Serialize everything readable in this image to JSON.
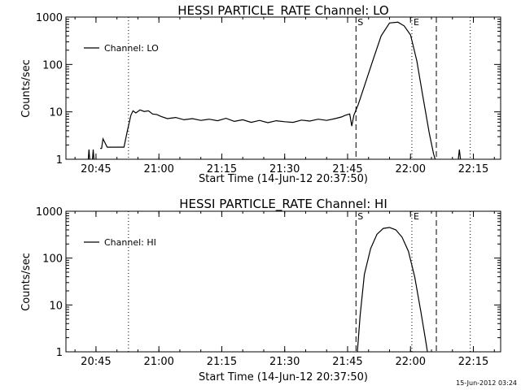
{
  "footer": {
    "timestamp": "15-Jun-2012 03:24"
  },
  "chart_data": [
    {
      "type": "line",
      "title": "HESSI PARTICLE_RATE Channel: LO",
      "xlabel": "Start Time (14-Jun-12 20:37:50)",
      "ylabel": "Counts/sec",
      "y_scale": "log",
      "xlim": [
        "20:37:50",
        "22:21:30"
      ],
      "ylim": [
        1,
        1000
      ],
      "x_ticks": [
        "20:45",
        "21:00",
        "21:15",
        "21:30",
        "21:45",
        "22:00",
        "22:15"
      ],
      "y_ticks": [
        "1",
        "10",
        "100",
        "1000"
      ],
      "grid": false,
      "legend": {
        "position": "top-left",
        "entries": [
          "Channel: LO"
        ]
      },
      "markers": [
        {
          "time": "20:52:45",
          "style": "dotted",
          "label": ""
        },
        {
          "time": "21:47:00",
          "style": "dashed",
          "label": "S"
        },
        {
          "time": "22:00:20",
          "style": "dotted",
          "label": "E"
        },
        {
          "time": "22:06:10",
          "style": "dashed",
          "label": ""
        },
        {
          "time": "22:14:15",
          "style": "dotted",
          "label": ""
        }
      ],
      "series": [
        {
          "name": "Channel: LO",
          "segments": [
            {
              "x": [
                "20:43:00",
                "20:43:20",
                "20:43:40",
                "20:44:00",
                "20:44:20",
                "20:44:40"
              ],
              "y": [
                0.65,
                1.6,
                0.65,
                0.65,
                1.6,
                0.65
              ]
            },
            {
              "x": [
                "20:46:00",
                "20:46:20",
                "20:46:40",
                "20:47:40",
                "20:48:10",
                "20:48:40",
                "20:49:20",
                "20:50:30",
                "20:51:40",
                "20:52:30",
                "20:53:20",
                "20:53:50",
                "20:54:30",
                "20:55:30",
                "20:56:30",
                "20:57:30",
                "20:58:30",
                "20:59:30",
                "21:00:30",
                "21:02:00",
                "21:04:00",
                "21:06:00",
                "21:08:00",
                "21:10:00",
                "21:12:00",
                "21:14:00",
                "21:16:00",
                "21:18:00",
                "21:20:00",
                "21:22:00",
                "21:24:00",
                "21:26:00",
                "21:28:00",
                "21:30:00",
                "21:32:00",
                "21:34:00",
                "21:36:00",
                "21:38:00",
                "21:40:00",
                "21:42:00",
                "21:43:30",
                "21:44:30",
                "21:45:30",
                "21:46:00",
                "21:46:30",
                "21:47:30",
                "21:49:00",
                "21:51:00",
                "21:53:00",
                "21:55:00",
                "21:57:00",
                "21:58:30",
                "22:00:00",
                "22:01:30",
                "22:03:00",
                "22:04:30",
                "22:05:30",
                "22:06:30"
              ],
              "y": [
                1.7,
                1.7,
                2.7,
                1.8,
                1.8,
                1.8,
                1.8,
                1.8,
                1.8,
                4.0,
                8.5,
                10.5,
                9.5,
                11.0,
                10.2,
                10.5,
                9.0,
                8.8,
                8.0,
                7.2,
                7.6,
                6.8,
                7.2,
                6.6,
                7.0,
                6.5,
                7.3,
                6.3,
                6.8,
                6.0,
                6.6,
                5.9,
                6.5,
                6.2,
                6.0,
                6.7,
                6.4,
                7.0,
                6.6,
                7.2,
                7.8,
                8.5,
                9.0,
                5.0,
                8.5,
                14,
                35,
                120,
                400,
                750,
                780,
                650,
                420,
                120,
                20,
                3.5,
                1.3,
                0.65
              ]
            },
            {
              "x": [
                "22:11:10",
                "22:11:40",
                "22:12:10"
              ],
              "y": [
                0.65,
                1.6,
                0.65
              ]
            }
          ]
        }
      ]
    },
    {
      "type": "line",
      "title": "HESSI PARTICLE_RATE Channel: HI",
      "xlabel": "Start Time (14-Jun-12 20:37:50)",
      "ylabel": "Counts/sec",
      "y_scale": "log",
      "xlim": [
        "20:37:50",
        "22:21:30"
      ],
      "ylim": [
        1,
        1000
      ],
      "x_ticks": [
        "20:45",
        "21:00",
        "21:15",
        "21:30",
        "21:45",
        "22:00",
        "22:15"
      ],
      "y_ticks": [
        "1",
        "10",
        "100",
        "1000"
      ],
      "grid": false,
      "legend": {
        "position": "top-left",
        "entries": [
          "Channel: HI"
        ]
      },
      "markers": [
        {
          "time": "20:52:45",
          "style": "dotted",
          "label": ""
        },
        {
          "time": "21:47:00",
          "style": "dashed",
          "label": "S"
        },
        {
          "time": "22:00:20",
          "style": "dotted",
          "label": "E"
        },
        {
          "time": "22:06:10",
          "style": "dashed",
          "label": ""
        },
        {
          "time": "22:14:15",
          "style": "dotted",
          "label": ""
        }
      ],
      "series": [
        {
          "name": "Channel: HI",
          "segments": [
            {
              "x": [
                "21:47:20",
                "21:48:00",
                "21:49:00",
                "21:50:30",
                "21:52:00",
                "21:53:30",
                "21:55:00",
                "21:56:30",
                "21:58:00",
                "21:59:30",
                "22:01:00",
                "22:02:30",
                "22:03:30",
                "22:04:10"
              ],
              "y": [
                1.0,
                6,
                45,
                160,
                320,
                430,
                450,
                400,
                280,
                140,
                40,
                7,
                2.0,
                0.85
              ]
            }
          ]
        }
      ]
    }
  ]
}
